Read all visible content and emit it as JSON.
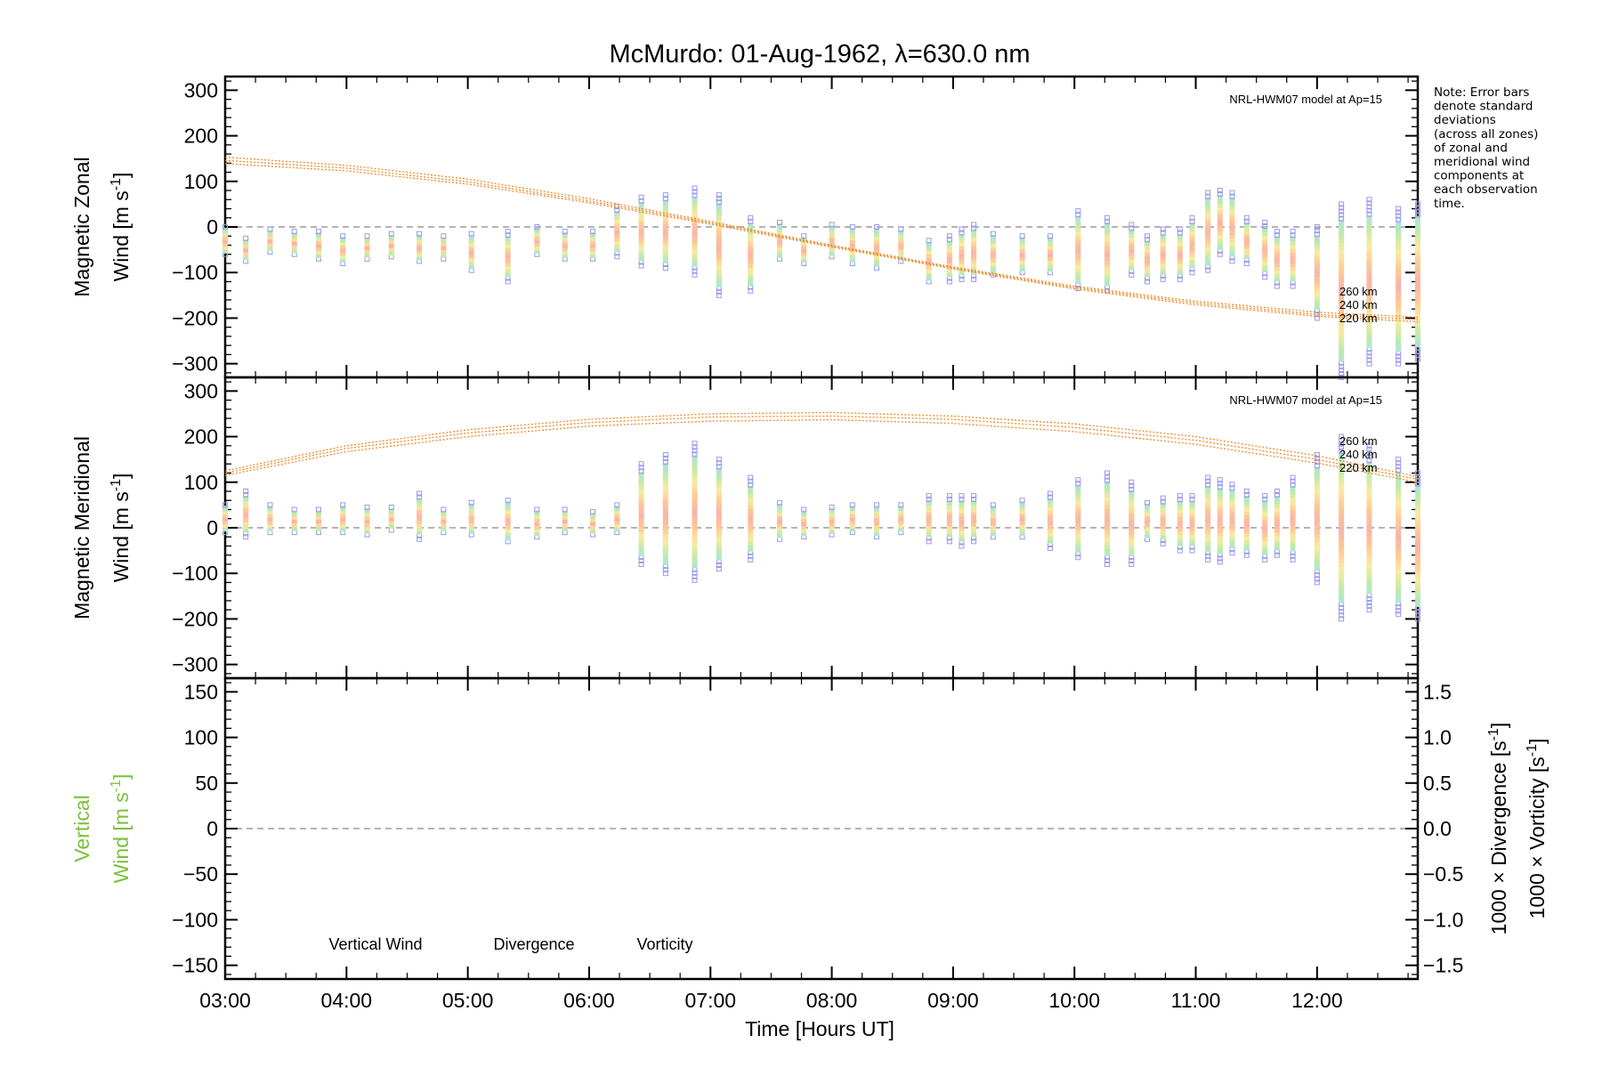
{
  "title": "McMurdo: 01-Aug-1962, λ=630.0 nm",
  "note": [
    "Note: Error bars",
    "denote standard",
    "deviations",
    "(across all zones)",
    "of zonal and",
    "meridional wind",
    "components at",
    "each observation",
    "time."
  ],
  "colors": {
    "model": "#f08a2c",
    "vertical": "#7cbf3a",
    "divergence": "#5aaed8",
    "vorticity": "#ee5a8c",
    "zero_line": "#888888",
    "error_bar": "#9999ee"
  },
  "chart_data": [
    {
      "type": "scatter",
      "panel": "zonal",
      "ylabel_line1": "Magnetic Zonal",
      "ylabel_line2": "Wind [m s",
      "ylabel_sup": "-1",
      "ylabel_close": "]",
      "ylim": [
        -330,
        330
      ],
      "yticks": [
        300,
        200,
        100,
        0,
        -100,
        -200,
        -300
      ],
      "ytick_labels": [
        "300",
        "200",
        "100",
        "0",
        "−100",
        "−200",
        "−300"
      ],
      "zero_line": 0,
      "model_label": "NRL-HWM07 model at Ap=15",
      "model_curve_labels": [
        "260 km",
        "240 km",
        "220 km"
      ],
      "model_curves": [
        {
          "name": "260 km",
          "x": [
            3.0,
            4.0,
            5.0,
            6.0,
            7.0,
            8.0,
            9.0,
            10.0,
            11.0,
            12.0,
            12.83
          ],
          "y": [
            153,
            135,
            105,
            62,
            12,
            -40,
            -88,
            -130,
            -163,
            -187,
            -198
          ]
        },
        {
          "name": "240 km",
          "x": [
            3.0,
            4.0,
            5.0,
            6.0,
            7.0,
            8.0,
            9.0,
            10.0,
            11.0,
            12.0,
            12.83
          ],
          "y": [
            146,
            129,
            99,
            57,
            9,
            -42,
            -90,
            -133,
            -167,
            -192,
            -203
          ]
        },
        {
          "name": "220 km",
          "x": [
            3.0,
            4.0,
            5.0,
            6.0,
            7.0,
            8.0,
            9.0,
            10.0,
            11.0,
            12.0,
            12.83
          ],
          "y": [
            139,
            123,
            94,
            53,
            6,
            -44,
            -92,
            -136,
            -171,
            -196,
            -208
          ]
        }
      ],
      "observations": {
        "x": [
          3.0,
          3.17,
          3.37,
          3.57,
          3.77,
          3.97,
          4.17,
          4.37,
          4.6,
          4.8,
          5.03,
          5.33,
          5.57,
          5.8,
          6.03,
          6.23,
          6.43,
          6.63,
          6.87,
          7.07,
          7.33,
          7.57,
          7.77,
          8.0,
          8.17,
          8.37,
          8.57,
          8.8,
          8.97,
          9.07,
          9.17,
          9.33,
          9.57,
          9.8,
          10.03,
          10.27,
          10.47,
          10.6,
          10.73,
          10.87,
          10.97,
          11.1,
          11.2,
          11.3,
          11.42,
          11.57,
          11.67,
          11.8,
          12.0,
          12.2,
          12.43,
          12.67,
          12.83
        ],
        "y": [
          -30,
          -50,
          -30,
          -35,
          -40,
          -50,
          -45,
          -40,
          -45,
          -45,
          -55,
          -65,
          -30,
          -40,
          -40,
          -10,
          -10,
          -10,
          -10,
          -40,
          -60,
          -30,
          -50,
          -30,
          -40,
          -45,
          -40,
          -75,
          -70,
          -60,
          -55,
          -60,
          -60,
          -60,
          -50,
          -60,
          -50,
          -70,
          -60,
          -60,
          -40,
          -10,
          10,
          0,
          -30,
          -50,
          -70,
          -70,
          -100,
          -140,
          -120,
          -130,
          -120
        ],
        "err": [
          30,
          25,
          25,
          25,
          30,
          30,
          25,
          25,
          30,
          25,
          40,
          55,
          30,
          30,
          30,
          55,
          75,
          80,
          95,
          110,
          80,
          40,
          30,
          35,
          40,
          45,
          35,
          45,
          50,
          55,
          60,
          45,
          40,
          40,
          85,
          80,
          55,
          50,
          55,
          55,
          60,
          85,
          70,
          75,
          50,
          60,
          60,
          60,
          100,
          190,
          180,
          170,
          170
        ]
      }
    },
    {
      "type": "scatter",
      "panel": "meridional",
      "ylabel_line1": "Magnetic Meridional",
      "ylabel_line2": "Wind [m s",
      "ylabel_sup": "-1",
      "ylabel_close": "]",
      "ylim": [
        -330,
        330
      ],
      "yticks": [
        300,
        200,
        100,
        0,
        -100,
        -200,
        -300
      ],
      "ytick_labels": [
        "300",
        "200",
        "100",
        "0",
        "−100",
        "−200",
        "−300"
      ],
      "zero_line": 0,
      "model_label": "NRL-HWM07 model at Ap=15",
      "model_curve_labels": [
        "260 km",
        "240 km",
        "220 km"
      ],
      "model_curves": [
        {
          "name": "260 km",
          "x": [
            3.0,
            4.0,
            5.0,
            6.0,
            7.0,
            8.0,
            9.0,
            10.0,
            11.0,
            12.0,
            12.83
          ],
          "y": [
            125,
            180,
            215,
            238,
            250,
            253,
            245,
            228,
            200,
            158,
            112
          ]
        },
        {
          "name": "240 km",
          "x": [
            3.0,
            4.0,
            5.0,
            6.0,
            7.0,
            8.0,
            9.0,
            10.0,
            11.0,
            12.0,
            12.83
          ],
          "y": [
            120,
            174,
            208,
            231,
            243,
            245,
            238,
            220,
            192,
            150,
            106
          ]
        },
        {
          "name": "220 km",
          "x": [
            3.0,
            4.0,
            5.0,
            6.0,
            7.0,
            8.0,
            9.0,
            10.0,
            11.0,
            12.0,
            12.83
          ],
          "y": [
            115,
            167,
            200,
            223,
            234,
            237,
            229,
            211,
            183,
            142,
            100
          ]
        }
      ],
      "observations": {
        "x": [
          3.0,
          3.17,
          3.37,
          3.57,
          3.77,
          3.97,
          4.17,
          4.37,
          4.6,
          4.8,
          5.03,
          5.33,
          5.57,
          5.8,
          6.03,
          6.23,
          6.43,
          6.63,
          6.87,
          7.07,
          7.33,
          7.57,
          7.77,
          8.0,
          8.17,
          8.37,
          8.57,
          8.8,
          8.97,
          9.07,
          9.17,
          9.33,
          9.57,
          9.8,
          10.03,
          10.27,
          10.47,
          10.6,
          10.73,
          10.87,
          10.97,
          11.1,
          11.2,
          11.3,
          11.42,
          11.57,
          11.67,
          11.8,
          12.0,
          12.2,
          12.43,
          12.67,
          12.83
        ],
        "y": [
          20,
          30,
          20,
          15,
          15,
          20,
          15,
          20,
          25,
          15,
          20,
          15,
          10,
          15,
          10,
          20,
          30,
          30,
          35,
          30,
          20,
          15,
          10,
          15,
          20,
          15,
          20,
          20,
          20,
          15,
          20,
          15,
          20,
          15,
          20,
          20,
          10,
          15,
          15,
          10,
          10,
          20,
          15,
          20,
          10,
          0,
          10,
          20,
          20,
          0,
          0,
          -20,
          -40
        ],
        "err": [
          30,
          50,
          30,
          25,
          25,
          30,
          30,
          25,
          50,
          25,
          35,
          45,
          30,
          25,
          25,
          30,
          110,
          130,
          150,
          120,
          90,
          40,
          30,
          30,
          30,
          35,
          30,
          50,
          50,
          55,
          50,
          35,
          40,
          60,
          85,
          100,
          90,
          40,
          50,
          60,
          60,
          90,
          90,
          75,
          70,
          70,
          70,
          90,
          140,
          200,
          180,
          170,
          160
        ]
      }
    },
    {
      "type": "line",
      "panel": "vertical",
      "ylabel_line1": "Vertical",
      "ylabel_line2": "Wind [m s",
      "ylabel_sup": "-1",
      "ylabel_close": "]",
      "ylim": [
        -165,
        165
      ],
      "yticks": [
        150,
        100,
        50,
        0,
        -50,
        -100,
        -150
      ],
      "ytick_labels": [
        "150",
        "100",
        "50",
        "0",
        "−50",
        "−100",
        "−150"
      ],
      "zero_line": 0,
      "y2_label_divergence": "1000 × Divergence [s",
      "y2_label_vorticity": "1000 × Vorticity [s",
      "y2_sup": "-1",
      "y2_close": "]",
      "y2lim": [
        -1.65,
        1.65
      ],
      "y2ticks": [
        1.5,
        1.0,
        0.5,
        0.0,
        -0.5,
        -1.0,
        -1.5
      ],
      "y2tick_labels": [
        "1.5",
        "1.0",
        "0.5",
        "0.0",
        "−0.5",
        "−1.0",
        "−1.5"
      ],
      "legend": [
        "Vertical Wind",
        "Divergence",
        "Vorticity"
      ],
      "series": []
    }
  ],
  "xaxis": {
    "label": "Time [Hours UT]",
    "xlim": [
      3.0,
      12.83
    ],
    "ticks": [
      3,
      4,
      5,
      6,
      7,
      8,
      9,
      10,
      11,
      12
    ],
    "tick_labels": [
      "03:00",
      "04:00",
      "05:00",
      "06:00",
      "07:00",
      "08:00",
      "09:00",
      "10:00",
      "11:00",
      "12:00"
    ]
  }
}
